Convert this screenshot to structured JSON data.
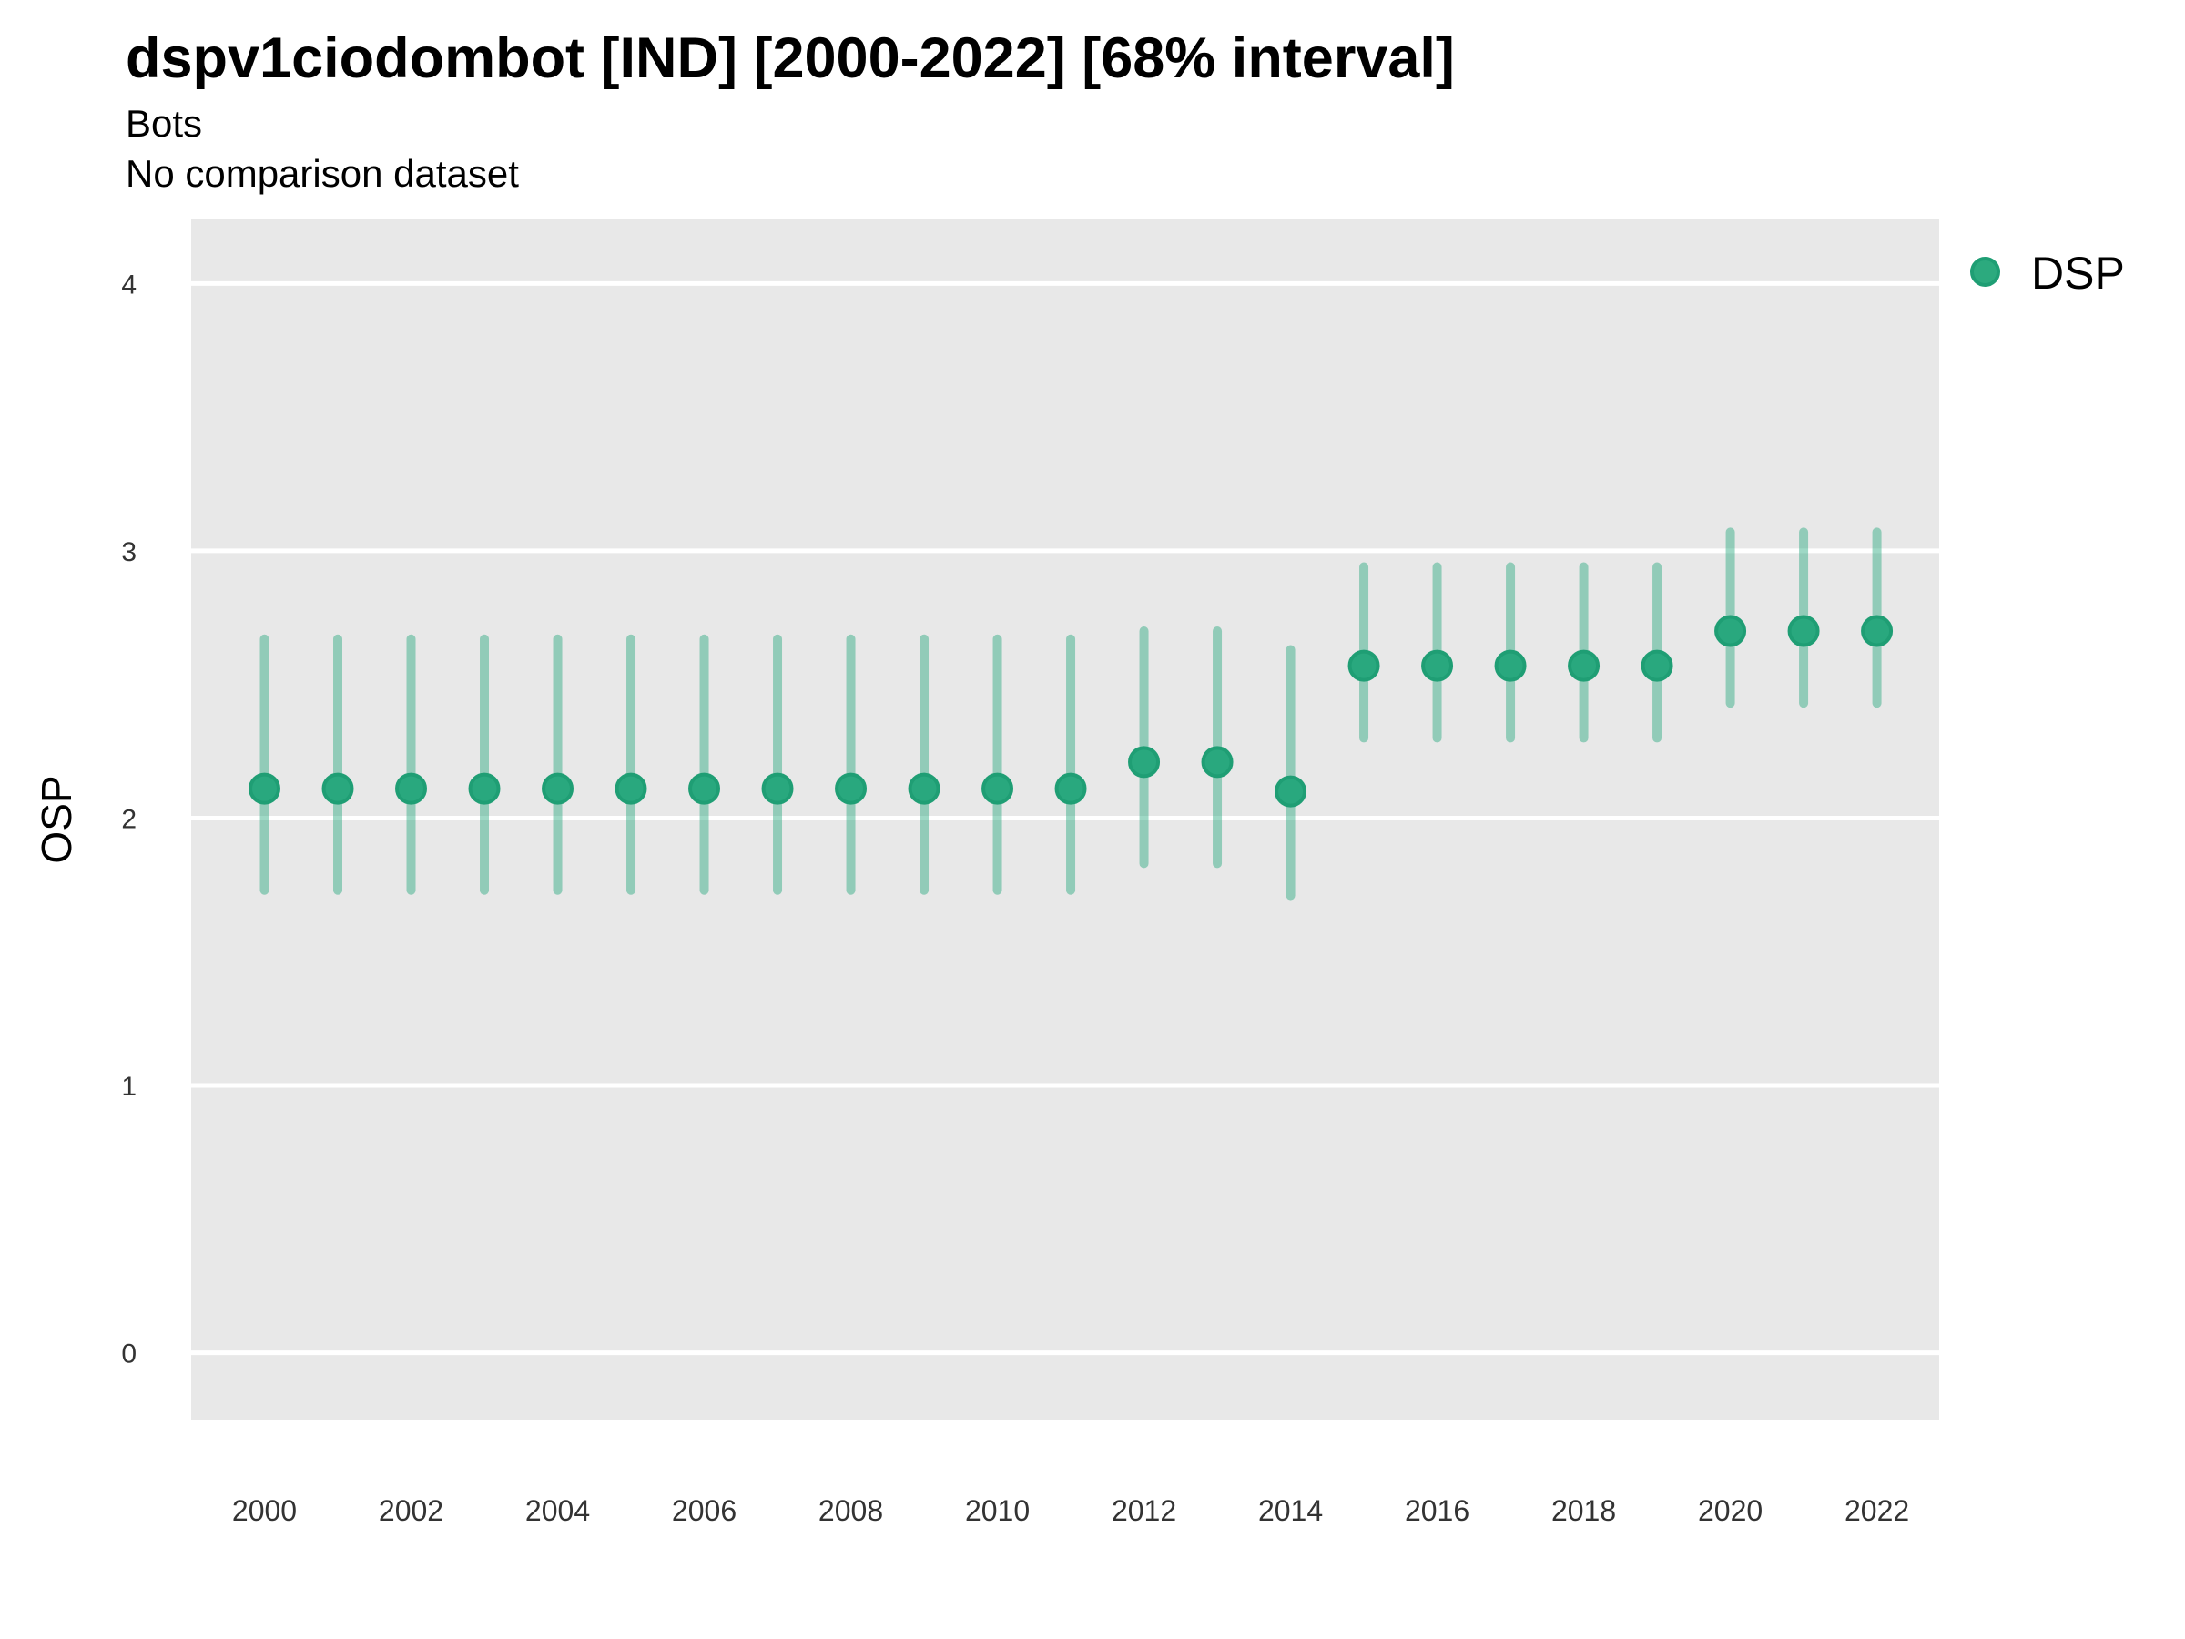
{
  "header": {
    "title": "dspv1ciodombot [IND] [2000-2022] [68% interval]",
    "subtitle": "Bots",
    "note": "No comparison dataset"
  },
  "legend": {
    "position": "right",
    "entries": [
      {
        "label": "DSP",
        "color": "#2caa7e",
        "ring_color": "#1f9e74"
      }
    ]
  },
  "chart_data": {
    "type": "pointrange",
    "title": "dspv1ciodombot [IND] [2000-2022] [68% interval]",
    "subtitle": "Bots",
    "note": "No comparison dataset",
    "interval_label": "68% interval",
    "xlabel": "",
    "ylabel": "OSP",
    "legend_position": "right",
    "grid": "horizontal-major-only",
    "panel_background": "#e8e8e8",
    "gridline_color": "#ffffff",
    "tick_label_color": "#333333",
    "point_color": "#29a87e",
    "point_ring_color": "#1f9e74",
    "range_color": "rgba(41, 168, 126, 0.45)",
    "xlim": [
      1999.0,
      2022.85
    ],
    "ylim": [
      -0.25,
      4.243
    ],
    "y_ticks": [
      0,
      1,
      2,
      3,
      4
    ],
    "x_ticks": [
      2000,
      2002,
      2004,
      2006,
      2008,
      2010,
      2012,
      2014,
      2016,
      2018,
      2020,
      2022
    ],
    "series": [
      {
        "name": "DSP",
        "points": [
          {
            "year": 2000,
            "value": 2.11,
            "lo": 1.73,
            "hi": 2.67
          },
          {
            "year": 2001,
            "value": 2.11,
            "lo": 1.73,
            "hi": 2.67
          },
          {
            "year": 2002,
            "value": 2.11,
            "lo": 1.73,
            "hi": 2.67
          },
          {
            "year": 2003,
            "value": 2.11,
            "lo": 1.73,
            "hi": 2.67
          },
          {
            "year": 2004,
            "value": 2.11,
            "lo": 1.73,
            "hi": 2.67
          },
          {
            "year": 2005,
            "value": 2.11,
            "lo": 1.73,
            "hi": 2.67
          },
          {
            "year": 2006,
            "value": 2.11,
            "lo": 1.73,
            "hi": 2.67
          },
          {
            "year": 2007,
            "value": 2.11,
            "lo": 1.73,
            "hi": 2.67
          },
          {
            "year": 2008,
            "value": 2.11,
            "lo": 1.73,
            "hi": 2.67
          },
          {
            "year": 2009,
            "value": 2.11,
            "lo": 1.73,
            "hi": 2.67
          },
          {
            "year": 2010,
            "value": 2.11,
            "lo": 1.73,
            "hi": 2.67
          },
          {
            "year": 2011,
            "value": 2.11,
            "lo": 1.73,
            "hi": 2.67
          },
          {
            "year": 2012,
            "value": 2.21,
            "lo": 1.83,
            "hi": 2.7
          },
          {
            "year": 2013,
            "value": 2.21,
            "lo": 1.83,
            "hi": 2.7
          },
          {
            "year": 2014,
            "value": 2.1,
            "lo": 1.71,
            "hi": 2.63
          },
          {
            "year": 2015,
            "value": 2.57,
            "lo": 2.3,
            "hi": 2.94
          },
          {
            "year": 2016,
            "value": 2.57,
            "lo": 2.3,
            "hi": 2.94
          },
          {
            "year": 2017,
            "value": 2.57,
            "lo": 2.3,
            "hi": 2.94
          },
          {
            "year": 2018,
            "value": 2.57,
            "lo": 2.3,
            "hi": 2.94
          },
          {
            "year": 2019,
            "value": 2.57,
            "lo": 2.3,
            "hi": 2.94
          },
          {
            "year": 2020,
            "value": 2.7,
            "lo": 2.43,
            "hi": 3.07
          },
          {
            "year": 2021,
            "value": 2.7,
            "lo": 2.43,
            "hi": 3.07
          },
          {
            "year": 2022,
            "value": 2.7,
            "lo": 2.43,
            "hi": 3.07
          }
        ]
      }
    ]
  }
}
